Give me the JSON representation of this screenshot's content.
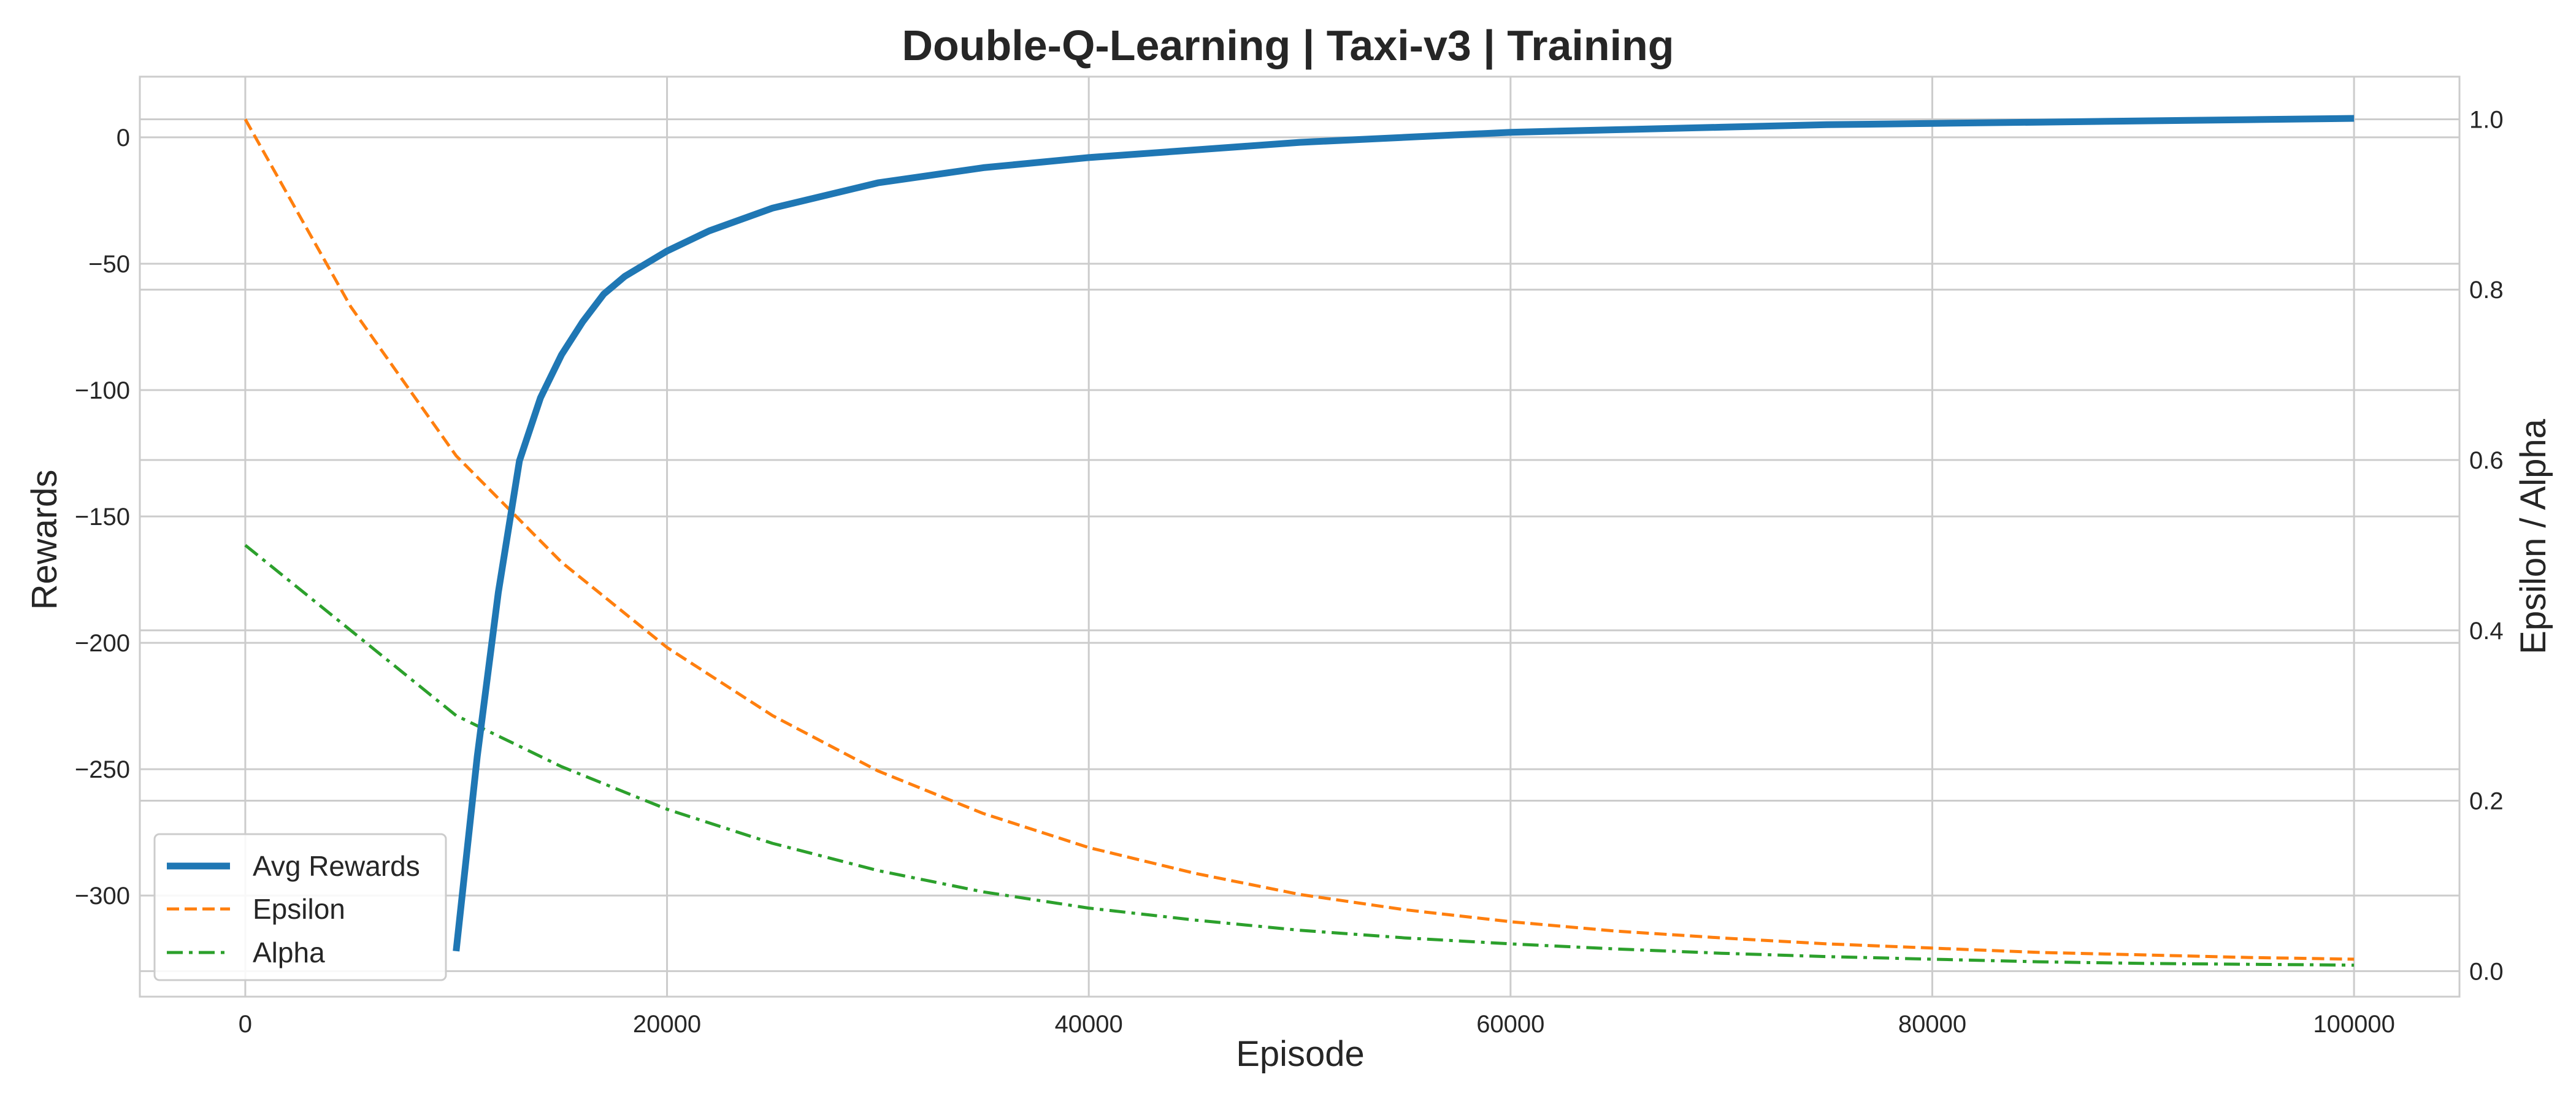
{
  "chart_data": {
    "type": "line",
    "title": "Double-Q-Learning | Taxi-v3 | Training",
    "xlabel": "Episode",
    "ylabel_left": "Rewards",
    "ylabel_right": "Epsilon / Alpha",
    "xlim": [
      -5000,
      105000
    ],
    "ylim_left": [
      -340,
      24
    ],
    "ylim_right": [
      -0.03,
      1.05
    ],
    "x_ticks": [
      0,
      20000,
      40000,
      60000,
      80000,
      100000
    ],
    "x_tick_labels": [
      "0",
      "20000",
      "40000",
      "60000",
      "80000",
      "100000"
    ],
    "y_left_ticks": [
      0,
      -50,
      -100,
      -150,
      -200,
      -250,
      -300
    ],
    "y_left_tick_labels": [
      "0",
      "−50",
      "−100",
      "−150",
      "−200",
      "−250",
      "−300"
    ],
    "y_right_ticks": [
      0.0,
      0.2,
      0.4,
      0.6,
      0.8,
      1.0
    ],
    "y_right_tick_labels": [
      "0.0",
      "0.2",
      "0.4",
      "0.6",
      "0.8",
      "1.0"
    ],
    "grid": true,
    "legend_position": "lower-left",
    "series": [
      {
        "name": "Avg Rewards",
        "axis": "left",
        "color": "#1f77b4",
        "style": "solid",
        "x": [
          10000,
          11000,
          12000,
          13000,
          14000,
          15000,
          16000,
          17000,
          18000,
          20000,
          22000,
          25000,
          30000,
          35000,
          40000,
          45000,
          50000,
          55000,
          60000,
          65000,
          70000,
          75000,
          80000,
          85000,
          90000,
          95000,
          100000
        ],
        "y": [
          -322,
          -245,
          -180,
          -128,
          -103,
          -86,
          -73,
          -62,
          -55,
          -45,
          -37,
          -28,
          -18,
          -12,
          -8,
          -5,
          -2,
          0,
          2,
          3,
          4,
          5,
          5.5,
          6,
          6.5,
          7,
          7.5
        ]
      },
      {
        "name": "Epsilon",
        "axis": "right",
        "color": "#ff7f0e",
        "style": "dashed",
        "x": [
          0,
          5000,
          10000,
          15000,
          20000,
          25000,
          30000,
          35000,
          40000,
          45000,
          50000,
          55000,
          60000,
          65000,
          70000,
          75000,
          80000,
          85000,
          90000,
          95000,
          100000
        ],
        "y": [
          1.0,
          0.78,
          0.605,
          0.48,
          0.38,
          0.3,
          0.235,
          0.185,
          0.145,
          0.115,
          0.09,
          0.072,
          0.058,
          0.047,
          0.039,
          0.032,
          0.027,
          0.022,
          0.019,
          0.016,
          0.014
        ]
      },
      {
        "name": "Alpha",
        "axis": "right",
        "color": "#2ca02c",
        "style": "dashdot",
        "x": [
          0,
          5000,
          10000,
          15000,
          20000,
          25000,
          30000,
          35000,
          40000,
          45000,
          50000,
          55000,
          60000,
          65000,
          70000,
          75000,
          80000,
          85000,
          90000,
          95000,
          100000
        ],
        "y": [
          0.5,
          0.4,
          0.3,
          0.24,
          0.19,
          0.15,
          0.118,
          0.093,
          0.074,
          0.06,
          0.048,
          0.039,
          0.032,
          0.026,
          0.021,
          0.017,
          0.014,
          0.011,
          0.009,
          0.008,
          0.007
        ]
      }
    ]
  }
}
